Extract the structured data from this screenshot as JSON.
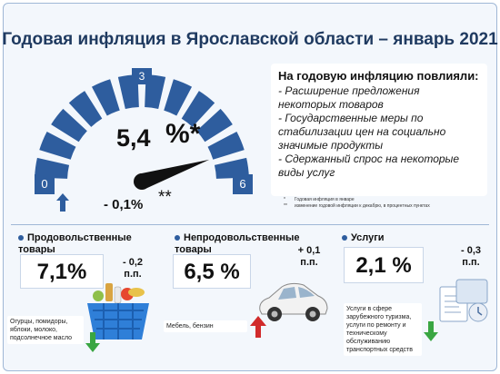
{
  "title": "Годовая инфляция в Ярославской области – январь 2021",
  "gauge": {
    "value": "5,4",
    "unit": "%*",
    "min_label": "0",
    "mid_label": "3",
    "max_label": "6",
    "change": "- 0,1%",
    "change_mark": "**",
    "scale_min": 0,
    "scale_max": 6,
    "reading": 5.4
  },
  "factors": {
    "title": "На годовую инфляцию повлияли:",
    "items": [
      "- Расширение предложения некоторых товаров",
      "- Государственные меры по стабилизации цен на социально значимые продукты",
      "- Сдержанный спрос на некоторые виды услуг"
    ]
  },
  "footnotes": [
    {
      "mark": "*",
      "text": "Годовая инфляция в январе"
    },
    {
      "mark": "**",
      "text": "изменение годовой инфляции к декабрю, в процентных пунктах"
    }
  ],
  "categories": {
    "food": {
      "title_line1": "Продовольственные",
      "title_line2": "товары",
      "value": "7,1%",
      "change_line1": "- 0,2",
      "change_line2": "п.п.",
      "note": "Огурцы, помидоры, яблоки, молоко, подсолнечное масло"
    },
    "nonfood": {
      "title_line1": "Непродовольственные",
      "title_line2": "товары",
      "value": "6,5 %",
      "change_line1": "+ 0,1",
      "change_line2": "п.п.",
      "note": "Мебель, бензин"
    },
    "services": {
      "title_line1": "Услуги",
      "value": "2,1 %",
      "change_line1": "- 0,3",
      "change_line2": "п.п.",
      "note": "Услуги в сфере зарубежного туризма, услуги по ремонту и техническому обслуживанию транспортных средств"
    }
  },
  "colors": {
    "gauge_blue": "#2e5d9e",
    "title_blue": "#1f3a60",
    "arrow_up": "#2e5d9e",
    "arrow_down": "#3aa642",
    "arrow_up_red": "#d12b2b"
  }
}
